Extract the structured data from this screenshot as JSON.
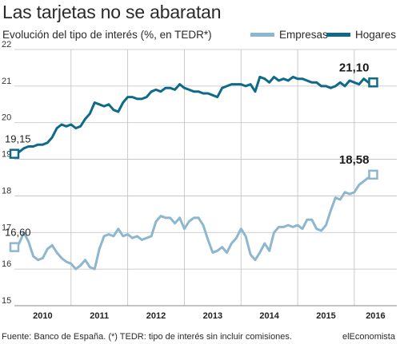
{
  "title": "Las tarjetas no se abaratan",
  "subtitle": "Evolución del tipo de interés (%, en TEDR*)",
  "footer": "Fuente: Banco de España. (*) TEDR: tipo de interés sin incluir comisiones.",
  "brand": "elEconomista",
  "colors": {
    "empresas": "#8db7cf",
    "hogares": "#0f6a8a",
    "grid": "#bfbfbf"
  },
  "chart_data": {
    "type": "line",
    "title": "Las tarjetas no se abaratan",
    "subtitle": "Evolución del tipo de interés (%, en TEDR*)",
    "xlabel": "",
    "ylabel": "",
    "ylim": [
      15,
      22
    ],
    "yticks": [
      15,
      16,
      17,
      18,
      19,
      20,
      21,
      22
    ],
    "xlim": [
      2010.0,
      2016.75
    ],
    "xticks": [
      {
        "label": "2010",
        "x": 2010.5
      },
      {
        "label": "2011",
        "x": 2011.5
      },
      {
        "label": "2012",
        "x": 2012.5
      },
      {
        "label": "2013",
        "x": 2013.5
      },
      {
        "label": "2014",
        "x": 2014.5
      },
      {
        "label": "2015",
        "x": 2015.5
      },
      {
        "label": "2016",
        "x": 2016.375
      }
    ],
    "grid": true,
    "legend_position": "top-right",
    "series": [
      {
        "name": "Empresas",
        "color": "#8db7cf",
        "start_label": "16,60",
        "end_label": "18,58",
        "points": [
          [
            2010.0,
            16.6
          ],
          [
            2010.083,
            16.7
          ],
          [
            2010.167,
            17.0
          ],
          [
            2010.25,
            16.75
          ],
          [
            2010.333,
            16.35
          ],
          [
            2010.417,
            16.25
          ],
          [
            2010.5,
            16.3
          ],
          [
            2010.583,
            16.55
          ],
          [
            2010.667,
            16.65
          ],
          [
            2010.75,
            16.45
          ],
          [
            2010.833,
            16.3
          ],
          [
            2010.917,
            16.2
          ],
          [
            2011.0,
            16.15
          ],
          [
            2011.083,
            16.0
          ],
          [
            2011.167,
            16.1
          ],
          [
            2011.25,
            16.25
          ],
          [
            2011.333,
            16.05
          ],
          [
            2011.417,
            16.0
          ],
          [
            2011.5,
            16.55
          ],
          [
            2011.583,
            16.9
          ],
          [
            2011.667,
            16.95
          ],
          [
            2011.75,
            16.9
          ],
          [
            2011.833,
            17.1
          ],
          [
            2011.917,
            16.9
          ],
          [
            2012.0,
            16.95
          ],
          [
            2012.083,
            16.85
          ],
          [
            2012.167,
            16.9
          ],
          [
            2012.25,
            16.8
          ],
          [
            2012.333,
            16.85
          ],
          [
            2012.417,
            16.9
          ],
          [
            2012.5,
            17.3
          ],
          [
            2012.583,
            17.45
          ],
          [
            2012.667,
            17.4
          ],
          [
            2012.75,
            17.4
          ],
          [
            2012.833,
            17.25
          ],
          [
            2012.917,
            17.4
          ],
          [
            2013.0,
            17.1
          ],
          [
            2013.083,
            17.3
          ],
          [
            2013.167,
            17.4
          ],
          [
            2013.25,
            17.4
          ],
          [
            2013.333,
            17.2
          ],
          [
            2013.417,
            16.8
          ],
          [
            2013.5,
            16.45
          ],
          [
            2013.583,
            16.5
          ],
          [
            2013.667,
            16.6
          ],
          [
            2013.75,
            16.45
          ],
          [
            2013.833,
            16.7
          ],
          [
            2013.917,
            16.85
          ],
          [
            2014.0,
            17.1
          ],
          [
            2014.083,
            16.9
          ],
          [
            2014.167,
            16.4
          ],
          [
            2014.25,
            16.25
          ],
          [
            2014.333,
            16.45
          ],
          [
            2014.417,
            16.7
          ],
          [
            2014.5,
            16.5
          ],
          [
            2014.583,
            17.0
          ],
          [
            2014.667,
            17.15
          ],
          [
            2014.75,
            17.15
          ],
          [
            2014.833,
            17.2
          ],
          [
            2014.917,
            17.15
          ],
          [
            2015.0,
            17.2
          ],
          [
            2015.083,
            17.1
          ],
          [
            2015.167,
            17.35
          ],
          [
            2015.25,
            17.35
          ],
          [
            2015.333,
            17.1
          ],
          [
            2015.417,
            17.05
          ],
          [
            2015.5,
            17.2
          ],
          [
            2015.583,
            17.6
          ],
          [
            2015.667,
            17.95
          ],
          [
            2015.75,
            17.9
          ],
          [
            2015.833,
            18.1
          ],
          [
            2015.917,
            18.05
          ],
          [
            2016.0,
            18.1
          ],
          [
            2016.083,
            18.3
          ],
          [
            2016.167,
            18.4
          ],
          [
            2016.25,
            18.5
          ],
          [
            2016.333,
            18.58
          ]
        ]
      },
      {
        "name": "Hogares",
        "color": "#0f6a8a",
        "start_label": "19,15",
        "end_label": "21,10",
        "points": [
          [
            2010.0,
            19.15
          ],
          [
            2010.083,
            19.2
          ],
          [
            2010.167,
            19.3
          ],
          [
            2010.25,
            19.35
          ],
          [
            2010.333,
            19.35
          ],
          [
            2010.417,
            19.4
          ],
          [
            2010.5,
            19.4
          ],
          [
            2010.583,
            19.45
          ],
          [
            2010.667,
            19.6
          ],
          [
            2010.75,
            19.85
          ],
          [
            2010.833,
            19.95
          ],
          [
            2010.917,
            19.9
          ],
          [
            2011.0,
            19.95
          ],
          [
            2011.083,
            19.85
          ],
          [
            2011.167,
            19.9
          ],
          [
            2011.25,
            20.1
          ],
          [
            2011.333,
            20.25
          ],
          [
            2011.417,
            20.55
          ],
          [
            2011.5,
            20.5
          ],
          [
            2011.583,
            20.45
          ],
          [
            2011.667,
            20.5
          ],
          [
            2011.75,
            20.35
          ],
          [
            2011.833,
            20.3
          ],
          [
            2011.917,
            20.55
          ],
          [
            2012.0,
            20.7
          ],
          [
            2012.083,
            20.7
          ],
          [
            2012.167,
            20.65
          ],
          [
            2012.25,
            20.65
          ],
          [
            2012.333,
            20.7
          ],
          [
            2012.417,
            20.85
          ],
          [
            2012.5,
            20.9
          ],
          [
            2012.583,
            20.85
          ],
          [
            2012.667,
            20.95
          ],
          [
            2012.75,
            20.95
          ],
          [
            2012.833,
            20.9
          ],
          [
            2012.917,
            21.05
          ],
          [
            2013.0,
            20.95
          ],
          [
            2013.083,
            20.9
          ],
          [
            2013.167,
            20.85
          ],
          [
            2013.25,
            20.85
          ],
          [
            2013.333,
            20.8
          ],
          [
            2013.417,
            20.8
          ],
          [
            2013.5,
            20.75
          ],
          [
            2013.583,
            20.7
          ],
          [
            2013.667,
            20.95
          ],
          [
            2013.75,
            21.0
          ],
          [
            2013.833,
            21.05
          ],
          [
            2013.917,
            21.05
          ],
          [
            2014.0,
            21.05
          ],
          [
            2014.083,
            21.0
          ],
          [
            2014.167,
            21.05
          ],
          [
            2014.25,
            20.85
          ],
          [
            2014.333,
            21.25
          ],
          [
            2014.417,
            21.2
          ],
          [
            2014.5,
            21.1
          ],
          [
            2014.583,
            21.25
          ],
          [
            2014.667,
            21.15
          ],
          [
            2014.75,
            21.2
          ],
          [
            2014.833,
            21.15
          ],
          [
            2014.917,
            21.25
          ],
          [
            2015.0,
            21.2
          ],
          [
            2015.083,
            21.2
          ],
          [
            2015.167,
            21.15
          ],
          [
            2015.25,
            21.1
          ],
          [
            2015.333,
            21.1
          ],
          [
            2015.417,
            21.0
          ],
          [
            2015.5,
            21.0
          ],
          [
            2015.583,
            20.95
          ],
          [
            2015.667,
            21.0
          ],
          [
            2015.75,
            21.1
          ],
          [
            2015.833,
            21.0
          ],
          [
            2015.917,
            21.15
          ],
          [
            2016.0,
            21.1
          ],
          [
            2016.083,
            21.05
          ],
          [
            2016.167,
            21.2
          ],
          [
            2016.25,
            21.1
          ],
          [
            2016.333,
            21.1
          ]
        ]
      }
    ]
  }
}
